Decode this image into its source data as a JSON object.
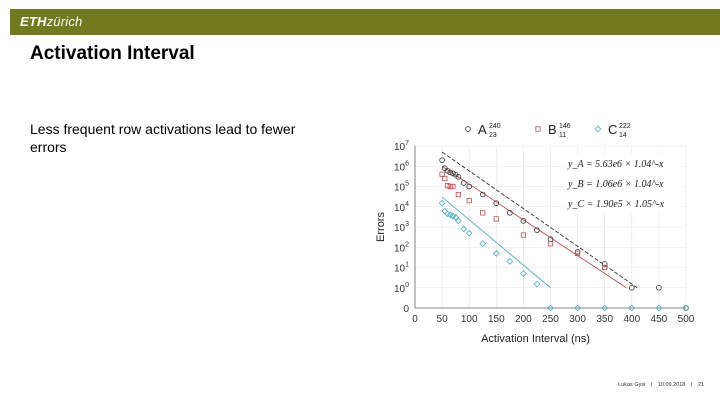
{
  "header": {
    "logo_bold": "ETH",
    "logo_rest": "zürich"
  },
  "slide": {
    "title": "Activation Interval",
    "body": "Less frequent row activations lead to fewer errors"
  },
  "footer": {
    "author": "Lukas Gysi",
    "sep1": "|",
    "date": "10.09.2018",
    "sep2": "|",
    "page": "21"
  },
  "chart_data": {
    "type": "scatter",
    "xlabel": "Activation Interval (ns)",
    "ylabel": "Errors",
    "x_ticks": [
      "0",
      "50",
      "100",
      "150",
      "200",
      "250",
      "300",
      "350",
      "400",
      "450",
      "500"
    ],
    "y_ticks": [
      "0",
      "10^0",
      "10^1",
      "10^2",
      "10^3",
      "10^4",
      "10^5",
      "10^6",
      "10^7"
    ],
    "xlim": [
      0,
      500
    ],
    "ylim_log10": [
      -1,
      7
    ],
    "legend_position": "top",
    "legend": [
      {
        "id": "A",
        "label": "A",
        "sup": "240",
        "sub": "23",
        "marker": "circle",
        "color": "#333333"
      },
      {
        "id": "B",
        "label": "B",
        "sup": "146",
        "sub": "11",
        "marker": "square",
        "color": "#c0504d"
      },
      {
        "id": "C",
        "label": "C",
        "sup": "222",
        "sub": "14",
        "marker": "diamond",
        "color": "#4bacc6"
      }
    ],
    "fit_equations": [
      {
        "series": "A",
        "text": "y_A = 5.63e6 × 1.04^-x"
      },
      {
        "series": "B",
        "text": "y_B = 1.06e6 × 1.04^-x"
      },
      {
        "series": "C",
        "text": "y_C = 1.90e5 × 1.05^-x"
      }
    ],
    "series": [
      {
        "name": "A",
        "points": [
          [
            50,
            2000000
          ],
          [
            55,
            800000
          ],
          [
            60,
            600000
          ],
          [
            65,
            500000
          ],
          [
            70,
            450000
          ],
          [
            75,
            380000
          ],
          [
            80,
            300000
          ],
          [
            90,
            150000
          ],
          [
            100,
            100000
          ],
          [
            125,
            40000
          ],
          [
            150,
            15000
          ],
          [
            175,
            5000
          ],
          [
            200,
            2000
          ],
          [
            225,
            700
          ],
          [
            250,
            250
          ],
          [
            300,
            60
          ],
          [
            350,
            15
          ],
          [
            400,
            1
          ],
          [
            450,
            1
          ],
          [
            500,
            0
          ]
        ]
      },
      {
        "name": "B",
        "points": [
          [
            50,
            400000
          ],
          [
            55,
            250000
          ],
          [
            60,
            110000
          ],
          [
            65,
            100000
          ],
          [
            70,
            100000
          ],
          [
            80,
            40000
          ],
          [
            100,
            20000
          ],
          [
            125,
            5000
          ],
          [
            150,
            2500
          ],
          [
            200,
            400
          ],
          [
            250,
            150
          ],
          [
            300,
            50
          ],
          [
            350,
            10
          ]
        ]
      },
      {
        "name": "C",
        "points": [
          [
            50,
            15000
          ],
          [
            55,
            6000
          ],
          [
            60,
            4500
          ],
          [
            65,
            4000
          ],
          [
            70,
            3500
          ],
          [
            75,
            3000
          ],
          [
            80,
            2000
          ],
          [
            90,
            800
          ],
          [
            100,
            500
          ],
          [
            125,
            150
          ],
          [
            150,
            50
          ],
          [
            175,
            20
          ],
          [
            200,
            5
          ],
          [
            225,
            1.5
          ],
          [
            250,
            0
          ],
          [
            300,
            0
          ],
          [
            350,
            0
          ],
          [
            400,
            0
          ],
          [
            450,
            0
          ],
          [
            500,
            0
          ]
        ]
      }
    ],
    "fits": [
      {
        "name": "A",
        "from": [
          50,
          5000000
        ],
        "to": [
          410,
          1
        ]
      },
      {
        "name": "B",
        "from": [
          50,
          1000000
        ],
        "to": [
          390,
          1
        ]
      },
      {
        "name": "C",
        "from": [
          50,
          30000
        ],
        "to": [
          250,
          1
        ]
      }
    ]
  }
}
